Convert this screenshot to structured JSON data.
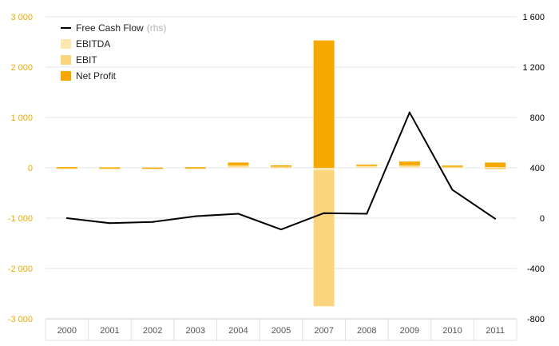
{
  "chart_data": {
    "type": "bar",
    "categories": [
      "2000",
      "2001",
      "2002",
      "2003",
      "2004",
      "2005",
      "2007",
      "2008",
      "2009",
      "2010",
      "2011"
    ],
    "series": [
      {
        "name": "EBITDA",
        "axis": "left",
        "color": "#fde6b0",
        "values": [
          5,
          5,
          2,
          5,
          30,
          15,
          -50,
          35,
          30,
          20,
          15
        ]
      },
      {
        "name": "EBIT",
        "axis": "left",
        "color": "#fbd57e",
        "values": [
          -10,
          -5,
          -5,
          -3,
          20,
          10,
          -2700,
          20,
          20,
          5,
          -30
        ]
      },
      {
        "name": "Net Profit",
        "axis": "left",
        "color": "#f5a800",
        "values": [
          10,
          5,
          3,
          8,
          55,
          25,
          2530,
          10,
          75,
          20,
          90
        ]
      },
      {
        "name": "Free Cash Flow",
        "axis": "right",
        "color": "#000000",
        "type": "line",
        "values": [
          0,
          -40,
          -30,
          15,
          35,
          -90,
          40,
          35,
          840,
          225,
          -5
        ]
      }
    ],
    "legend": {
      "placement": "top-left",
      "items": [
        {
          "label": "Free Cash Flow",
          "suffix": "(rhs)",
          "kind": "line",
          "color": "#000000"
        },
        {
          "label": "EBITDA",
          "kind": "box",
          "color": "#fde6b0"
        },
        {
          "label": "EBIT",
          "kind": "box",
          "color": "#fbd57e"
        },
        {
          "label": "Net Profit",
          "kind": "box",
          "color": "#f5a800"
        }
      ]
    },
    "y_left": {
      "min": -3000,
      "max": 3000,
      "ticks": [
        -3000,
        -2000,
        -1000,
        0,
        1000,
        2000,
        3000
      ],
      "tick_labels": [
        "-3 000",
        "-2 000",
        "-1 000",
        "0",
        "1 000",
        "2 000",
        "3 000"
      ],
      "color": "#f0a800"
    },
    "y_right": {
      "min": -800,
      "max": 1600,
      "ticks": [
        -800,
        -400,
        0,
        400,
        800,
        1200,
        1600
      ],
      "tick_labels": [
        "-800",
        "-400",
        "0",
        "400",
        "800",
        "1 200",
        "1 600"
      ],
      "color": "#000000"
    },
    "grid": true
  }
}
